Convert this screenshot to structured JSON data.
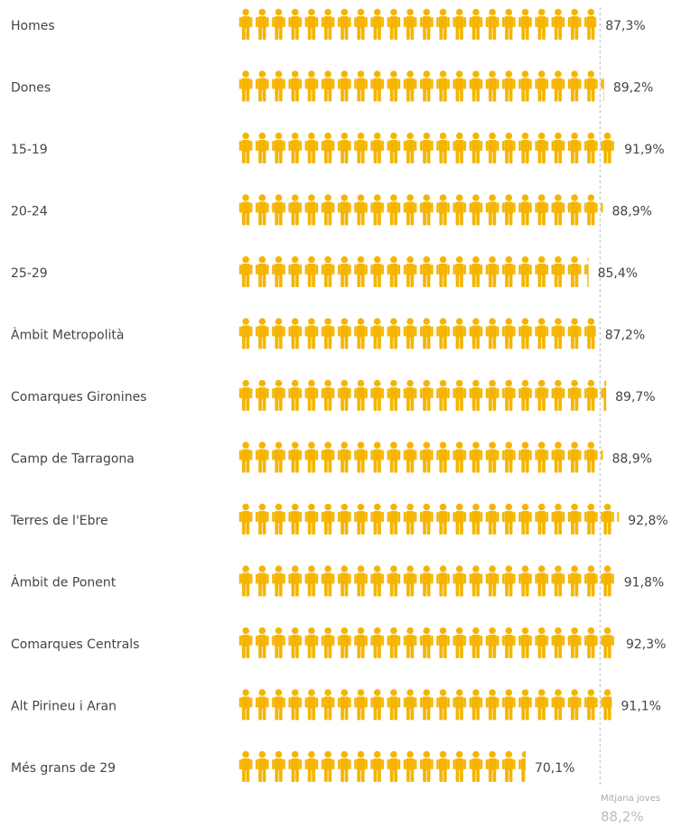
{
  "chart_data": {
    "type": "pictogram",
    "categories": [
      "Homes",
      "Dones",
      "15-19",
      "20-24",
      "25-29",
      "Àmbit Metropolità",
      "Comarques Gironines",
      "Camp de Tarragona",
      "Terres de l'Ebre",
      "Àmbit de Ponent",
      "Comarques Centrals",
      "Alt Pirineu i Aran",
      "Més grans de 29"
    ],
    "values": [
      87.3,
      89.2,
      91.9,
      88.9,
      85.4,
      87.2,
      89.7,
      88.9,
      92.8,
      91.8,
      92.3,
      91.1,
      70.1
    ],
    "value_labels": [
      "87,3%",
      "89,2%",
      "91,9%",
      "88,9%",
      "85,4%",
      "87,2%",
      "89,7%",
      "88,9%",
      "92,8%",
      "91,8%",
      "92,3%",
      "91,1%",
      "70,1%"
    ],
    "color": "#f5b400",
    "reference": {
      "label": "Mitjana joves",
      "value": 88.2,
      "value_label": "88,2%"
    }
  }
}
